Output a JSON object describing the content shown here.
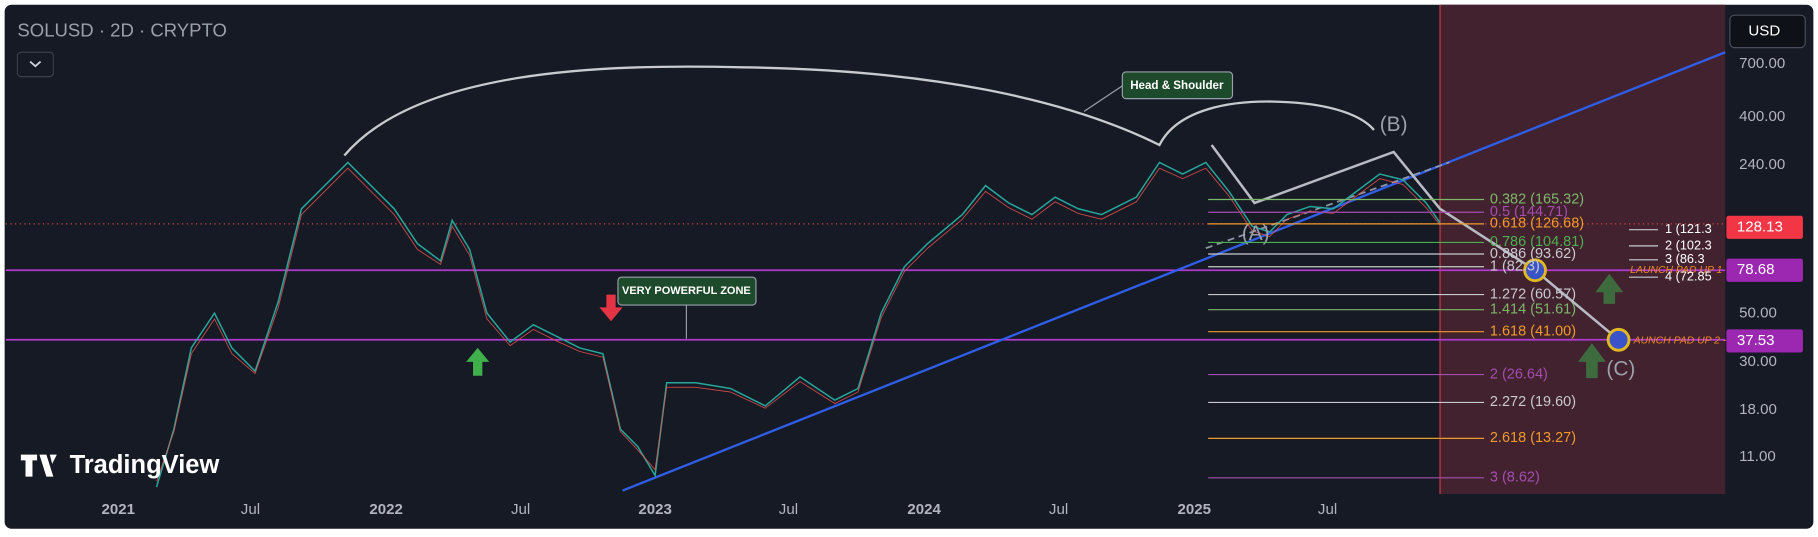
{
  "header": {
    "symbol": "SOLUSD · 2D · CRYPTO",
    "currency": "USD"
  },
  "price_axis": {
    "ticks": [
      {
        "value": 700,
        "label": "700.00"
      },
      {
        "value": 400,
        "label": "400.00"
      },
      {
        "value": 240,
        "label": "240.00"
      },
      {
        "value": 50,
        "label": "50.00"
      },
      {
        "value": 30,
        "label": "30.00"
      },
      {
        "value": 18,
        "label": "18.00"
      },
      {
        "value": 11,
        "label": "11.00"
      }
    ],
    "badges": [
      {
        "value": 128.13,
        "label": "128.13"
      },
      {
        "value": 78.68,
        "label": "78.68"
      },
      {
        "value": 37.53,
        "label": "37.53"
      }
    ]
  },
  "time_axis": [
    "2021",
    "Jul",
    "2022",
    "Jul",
    "2023",
    "Jul",
    "2024",
    "Jul",
    "2025",
    "Jul"
  ],
  "annotations": {
    "head_shoulder": "Head & Shoulder",
    "zone": "VERY POWERFUL ZONE",
    "launch_1": "LAUNCH PAD UP 1",
    "launch_2": "AUNCH PAD UP 2 -"
  },
  "waves": [
    "(A)",
    "(B)",
    "(C)"
  ],
  "fib_levels": [
    "0.382 (165.32)",
    "0.5 (144.71)",
    "0.618 (126.68)",
    "0.786 (104.81)",
    "0.886 (93.62)",
    "1 (82.3)",
    "1.272 (60.57)",
    "1.414 (51.61)",
    "1.618 (41.00)",
    "2 (26.64)",
    "2.272 (19.60)",
    "2.618 (13.27)",
    "3 (8.62)"
  ],
  "side_levels": [
    "1 (121.3",
    "2 (102.3",
    "3 (86.3",
    "4 (72.85"
  ],
  "logo": "TradingView"
}
